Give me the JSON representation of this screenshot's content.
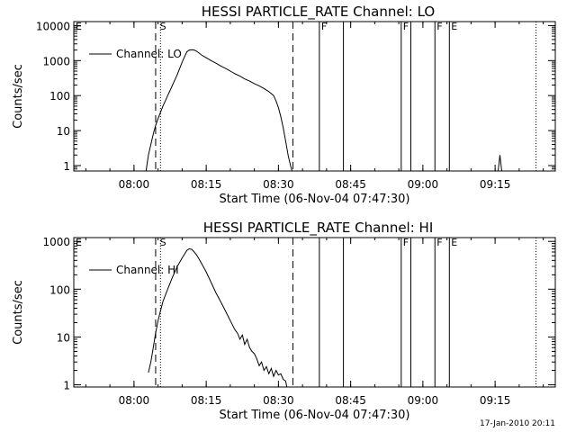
{
  "footer": {
    "date": "17-Jan-2010 20:11"
  },
  "chart_data": [
    {
      "type": "line",
      "title": "HESSI PARTICLE_RATE Channel: LO",
      "xlabel": "Start Time (06-Nov-04 07:47:30)",
      "ylabel": "Counts/sec",
      "xlim": [
        "07:47:30",
        "09:27:30"
      ],
      "ylim": [
        0.7,
        13000
      ],
      "yscale": "log",
      "xticks": [
        "08:00",
        "08:15",
        "08:30",
        "08:45",
        "09:00",
        "09:15"
      ],
      "yticks": [
        {
          "v": 1,
          "label": "1"
        },
        {
          "v": 10,
          "label": "10"
        },
        {
          "v": 100,
          "label": "100"
        },
        {
          "v": 1000,
          "label": "1000"
        },
        {
          "v": 10000,
          "label": "10000"
        }
      ],
      "legend": "top-left",
      "series": [
        {
          "name": "Channel: LO",
          "x": [
            "08:02:30",
            "08:03:00",
            "08:03:30",
            "08:04:00",
            "08:04:30",
            "08:05:00",
            "08:05:30",
            "08:06:00",
            "08:06:30",
            "08:07:00",
            "08:07:30",
            "08:08:00",
            "08:08:30",
            "08:09:00",
            "08:09:30",
            "08:10:00",
            "08:10:30",
            "08:11:00",
            "08:11:30",
            "08:12:00",
            "08:12:30",
            "08:13:00",
            "08:13:30",
            "08:14:00",
            "08:15:00",
            "08:16:00",
            "08:17:00",
            "08:18:00",
            "08:19:00",
            "08:20:00",
            "08:21:00",
            "08:22:00",
            "08:23:00",
            "08:24:00",
            "08:25:00",
            "08:26:00",
            "08:27:00",
            "08:28:00",
            "08:29:00",
            "08:29:30",
            "08:30:00",
            "08:30:30",
            "08:31:00",
            "08:31:30",
            "08:32:00",
            "08:32:30",
            "08:32:50"
          ],
          "y": [
            0.7,
            2,
            4,
            8,
            14,
            22,
            33,
            50,
            70,
            100,
            140,
            200,
            280,
            400,
            600,
            900,
            1300,
            1800,
            2000,
            2050,
            2000,
            1850,
            1650,
            1450,
            1200,
            1000,
            850,
            700,
            600,
            500,
            420,
            360,
            300,
            260,
            220,
            190,
            160,
            130,
            100,
            70,
            45,
            25,
            12,
            5,
            2,
            1,
            0.7
          ]
        }
      ],
      "spikes": [
        {
          "x": "09:16:00",
          "y": 2
        }
      ],
      "dashed_lines": [
        "08:04:30",
        "08:33:00"
      ],
      "dotted_lines": [
        "08:05:30",
        "09:23:30"
      ],
      "solid_lines": [
        "08:38:30",
        "08:43:30",
        "08:55:30",
        "08:57:30",
        "09:02:30",
        "09:05:30"
      ],
      "flags": [
        {
          "x": "07:47:30",
          "label": "E"
        },
        {
          "x": "08:05:00",
          "label": "S"
        },
        {
          "x": "08:38:30",
          "label": "F"
        },
        {
          "x": "08:55:30",
          "label": "F"
        },
        {
          "x": "09:02:30",
          "label": "F"
        },
        {
          "x": "09:05:30",
          "label": "E"
        }
      ]
    },
    {
      "type": "line",
      "title": "HESSI PARTICLE_RATE Channel: HI",
      "xlabel": "Start Time (06-Nov-04 07:47:30)",
      "ylabel": "Counts/sec",
      "xlim": [
        "07:47:30",
        "09:27:30"
      ],
      "ylim": [
        0.9,
        1200
      ],
      "yscale": "log",
      "xticks": [
        "08:00",
        "08:15",
        "08:30",
        "08:45",
        "09:00",
        "09:15"
      ],
      "yticks": [
        {
          "v": 1,
          "label": "1"
        },
        {
          "v": 10,
          "label": "10"
        },
        {
          "v": 100,
          "label": "100"
        },
        {
          "v": 1000,
          "label": "1000"
        }
      ],
      "legend": "top-left",
      "series": [
        {
          "name": "Channel: HI",
          "x": [
            "08:03:00",
            "08:03:30",
            "08:04:00",
            "08:04:30",
            "08:05:00",
            "08:05:30",
            "08:06:00",
            "08:07:00",
            "08:08:00",
            "08:09:00",
            "08:10:00",
            "08:11:00",
            "08:11:30",
            "08:12:00",
            "08:12:30",
            "08:13:00",
            "08:13:30",
            "08:14:00",
            "08:15:00",
            "08:16:00",
            "08:17:00",
            "08:18:00",
            "08:19:00",
            "08:20:00",
            "08:21:00",
            "08:21:30",
            "08:22:00",
            "08:22:30",
            "08:23:00",
            "08:23:30",
            "08:24:00",
            "08:24:30",
            "08:25:00",
            "08:25:30",
            "08:26:00",
            "08:26:30",
            "08:27:00",
            "08:27:30",
            "08:28:00",
            "08:28:30",
            "08:29:00",
            "08:29:30",
            "08:30:00",
            "08:30:30",
            "08:31:00",
            "08:31:30",
            "08:31:45"
          ],
          "y": [
            1.8,
            3,
            6,
            12,
            22,
            35,
            55,
            100,
            180,
            300,
            450,
            650,
            700,
            680,
            600,
            520,
            430,
            350,
            230,
            140,
            85,
            55,
            35,
            22,
            14,
            12,
            9,
            11,
            7,
            9,
            6,
            5,
            4.5,
            3.5,
            2.5,
            3,
            2,
            2.4,
            1.7,
            2.2,
            1.5,
            2,
            1.6,
            1.7,
            1.3,
            1.2,
            0.9
          ]
        }
      ],
      "dashed_lines": [
        "08:04:30",
        "08:33:00"
      ],
      "dotted_lines": [
        "08:05:30",
        "09:23:30"
      ],
      "solid_lines": [
        "08:38:30",
        "08:43:30",
        "08:55:30",
        "08:57:30",
        "09:02:30",
        "09:05:30"
      ],
      "flags": [
        {
          "x": "07:47:30",
          "label": "E"
        },
        {
          "x": "08:05:00",
          "label": "S"
        },
        {
          "x": "08:55:30",
          "label": "F"
        },
        {
          "x": "09:02:30",
          "label": "F"
        },
        {
          "x": "09:05:30",
          "label": "E"
        }
      ]
    }
  ]
}
